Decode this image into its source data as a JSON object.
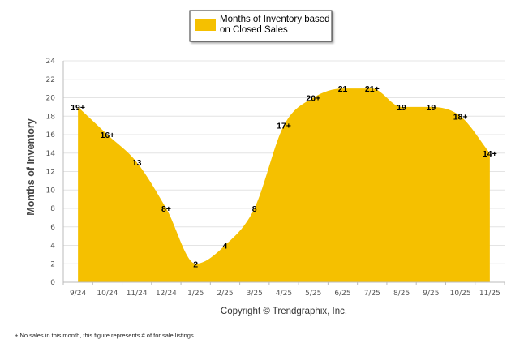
{
  "chart_data": {
    "type": "area",
    "title": "",
    "xlabel": "",
    "ylabel": "Months of Inventory",
    "ylim": [
      0,
      24
    ],
    "yticks": [
      0,
      2,
      4,
      6,
      8,
      10,
      12,
      14,
      16,
      18,
      20,
      22,
      24
    ],
    "grid": true,
    "legend_position": "top-center",
    "categories": [
      "9/24",
      "10/24",
      "11/24",
      "12/24",
      "1/25",
      "2/25",
      "3/25",
      "4/25",
      "5/25",
      "6/25",
      "7/25",
      "8/25",
      "9/25",
      "10/25",
      "11/25"
    ],
    "series": [
      {
        "name": "Months of Inventory based on Closed Sales",
        "legend_lines": [
          "Months of Inventory based",
          "on Closed Sales"
        ],
        "color": "#F5C000",
        "values": [
          19,
          16,
          13,
          8,
          2,
          4,
          8,
          17,
          20,
          21,
          21,
          19,
          19,
          18,
          14
        ],
        "labels": [
          "19+",
          "16+",
          "13",
          "8+",
          "2",
          "4",
          "8",
          "17+",
          "20+",
          "21",
          "21+",
          "19",
          "19",
          "18+",
          "14+"
        ]
      }
    ],
    "credit": "Copyright © Trendgraphix, Inc.",
    "footnote": "+  No sales in this month, this figure represents # of for sale listings"
  }
}
